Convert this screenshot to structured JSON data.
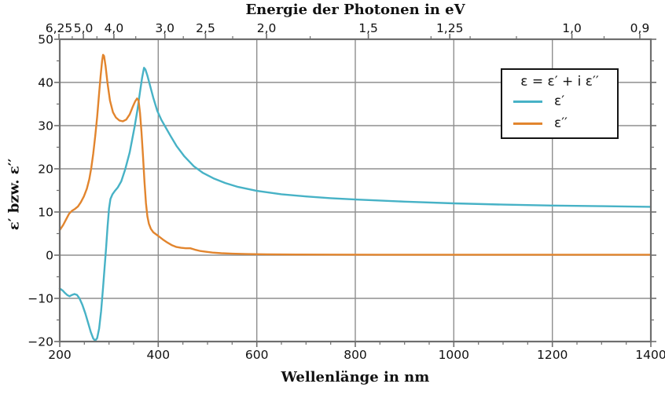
{
  "chart_data": {
    "type": "line",
    "title": "Energie der Photonen in eV",
    "xlabel": "Wellenlänge in nm",
    "ylabel": "ε′ bzw. ε′′",
    "grid": true,
    "x_axis": {
      "label": "Wellenlänge in nm",
      "unit": "nm",
      "min": 200,
      "max": 1400,
      "major_ticks": [
        {
          "v": 200,
          "label": "200"
        },
        {
          "v": 400,
          "label": "400"
        },
        {
          "v": 600,
          "label": "600"
        },
        {
          "v": 800,
          "label": "800"
        },
        {
          "v": 1000,
          "label": "1000"
        },
        {
          "v": 1200,
          "label": "1200"
        },
        {
          "v": 1400,
          "label": "1400"
        }
      ],
      "minor_tick_step": 50
    },
    "y_axis": {
      "label": "ε′ bzw. ε′′",
      "min": -20,
      "max": 50,
      "major_ticks": [
        {
          "v": -20,
          "label": "−20"
        },
        {
          "v": -10,
          "label": "−10"
        },
        {
          "v": 0,
          "label": "0"
        },
        {
          "v": 10,
          "label": "10"
        },
        {
          "v": 20,
          "label": "20"
        },
        {
          "v": 30,
          "label": "30"
        },
        {
          "v": 40,
          "label": "40"
        },
        {
          "v": 50,
          "label": "50"
        }
      ],
      "minor_tick_step": 5
    },
    "top_axis": {
      "label": "Energie der Photonen in eV",
      "unit": "eV",
      "nm_per_ev": 1239.84,
      "major_ticks": [
        {
          "v": 6.25,
          "label": "6,25"
        },
        {
          "v": 5.0,
          "label": "5,0"
        },
        {
          "v": 4.0,
          "label": "4,0"
        },
        {
          "v": 3.0,
          "label": "3,0"
        },
        {
          "v": 2.5,
          "label": "2,5"
        },
        {
          "v": 2.0,
          "label": "2,0"
        },
        {
          "v": 1.5,
          "label": "1,5"
        },
        {
          "v": 1.25,
          "label": "1,25"
        },
        {
          "v": 1.0,
          "label": "1,0"
        },
        {
          "v": 0.9,
          "label": "0,9"
        }
      ],
      "minor_ticks": [
        5.5,
        4.5,
        3.5,
        2.75,
        2.25,
        1.75,
        1.3,
        1.2,
        1.1,
        0.95
      ]
    },
    "legend": {
      "position": "upper right",
      "title": "ε = ε′  + i ε′′",
      "entries": [
        {
          "label": "ε′",
          "color": "#47b2c6"
        },
        {
          "label": "ε′′",
          "color": "#e2852e"
        }
      ]
    },
    "series": [
      {
        "name": "epsilon-real",
        "label": "ε′",
        "color": "#47b2c6",
        "points": [
          [
            200,
            -7.7
          ],
          [
            206,
            -8.2
          ],
          [
            211,
            -8.8
          ],
          [
            216,
            -9.3
          ],
          [
            220,
            -9.5
          ],
          [
            225,
            -9.2
          ],
          [
            230,
            -9.0
          ],
          [
            235,
            -9.2
          ],
          [
            240,
            -10.0
          ],
          [
            246,
            -11.5
          ],
          [
            252,
            -13.5
          ],
          [
            258,
            -15.8
          ],
          [
            263,
            -17.8
          ],
          [
            268,
            -19.3
          ],
          [
            272,
            -19.8
          ],
          [
            276,
            -19.2
          ],
          [
            280,
            -17.0
          ],
          [
            284,
            -13.0
          ],
          [
            288,
            -7.5
          ],
          [
            291,
            -3.0
          ],
          [
            294,
            1.5
          ],
          [
            297,
            6.5
          ],
          [
            300,
            10.8
          ],
          [
            303,
            13.0
          ],
          [
            307,
            14.1
          ],
          [
            312,
            14.9
          ],
          [
            318,
            15.7
          ],
          [
            325,
            17.1
          ],
          [
            333,
            19.9
          ],
          [
            342,
            23.8
          ],
          [
            352,
            29.8
          ],
          [
            358,
            33.8
          ],
          [
            363,
            37.8
          ],
          [
            367,
            41.0
          ],
          [
            371,
            43.4
          ],
          [
            374,
            43.0
          ],
          [
            378,
            41.6
          ],
          [
            383,
            39.4
          ],
          [
            390,
            36.4
          ],
          [
            398,
            33.4
          ],
          [
            406,
            31.4
          ],
          [
            414,
            29.8
          ],
          [
            425,
            27.6
          ],
          [
            437,
            25.3
          ],
          [
            453,
            22.9
          ],
          [
            472,
            20.6
          ],
          [
            490,
            19.1
          ],
          [
            512,
            17.8
          ],
          [
            536,
            16.7
          ],
          [
            562,
            15.8
          ],
          [
            600,
            14.9
          ],
          [
            650,
            14.1
          ],
          [
            700,
            13.6
          ],
          [
            750,
            13.2
          ],
          [
            800,
            12.9
          ],
          [
            900,
            12.4
          ],
          [
            1000,
            12.0
          ],
          [
            1100,
            11.7
          ],
          [
            1200,
            11.5
          ],
          [
            1300,
            11.35
          ],
          [
            1400,
            11.2
          ]
        ]
      },
      {
        "name": "epsilon-imag",
        "label": "ε′′",
        "color": "#e2852e",
        "points": [
          [
            200,
            5.8
          ],
          [
            207,
            7.0
          ],
          [
            213,
            8.3
          ],
          [
            219,
            9.6
          ],
          [
            225,
            10.3
          ],
          [
            231,
            10.7
          ],
          [
            237,
            11.3
          ],
          [
            243,
            12.3
          ],
          [
            249,
            13.6
          ],
          [
            255,
            15.4
          ],
          [
            260,
            17.6
          ],
          [
            264,
            20.2
          ],
          [
            268,
            23.5
          ],
          [
            272,
            27.5
          ],
          [
            276,
            32.0
          ],
          [
            280,
            37.5
          ],
          [
            283,
            41.5
          ],
          [
            286,
            45.0
          ],
          [
            288,
            46.4
          ],
          [
            290,
            46.1
          ],
          [
            293,
            43.8
          ],
          [
            297,
            39.8
          ],
          [
            302,
            35.8
          ],
          [
            308,
            33.1
          ],
          [
            314,
            31.9
          ],
          [
            321,
            31.2
          ],
          [
            328,
            31.0
          ],
          [
            335,
            31.4
          ],
          [
            342,
            32.6
          ],
          [
            348,
            34.3
          ],
          [
            353,
            35.6
          ],
          [
            357,
            36.3
          ],
          [
            360,
            35.8
          ],
          [
            363,
            33.0
          ],
          [
            366,
            28.5
          ],
          [
            369,
            23.0
          ],
          [
            372,
            17.0
          ],
          [
            375,
            12.0
          ],
          [
            378,
            9.0
          ],
          [
            381,
            7.3
          ],
          [
            385,
            6.1
          ],
          [
            390,
            5.3
          ],
          [
            396,
            4.8
          ],
          [
            403,
            4.2
          ],
          [
            411,
            3.5
          ],
          [
            419,
            2.9
          ],
          [
            428,
            2.3
          ],
          [
            437,
            1.9
          ],
          [
            446,
            1.7
          ],
          [
            456,
            1.6
          ],
          [
            465,
            1.6
          ],
          [
            474,
            1.3
          ],
          [
            484,
            1.0
          ],
          [
            496,
            0.8
          ],
          [
            510,
            0.6
          ],
          [
            528,
            0.45
          ],
          [
            550,
            0.35
          ],
          [
            580,
            0.25
          ],
          [
            620,
            0.2
          ],
          [
            680,
            0.15
          ],
          [
            750,
            0.12
          ],
          [
            850,
            0.1
          ],
          [
            1000,
            0.1
          ],
          [
            1200,
            0.1
          ],
          [
            1400,
            0.1
          ]
        ]
      }
    ],
    "styles": {
      "grid_color": "#8f8f8f",
      "spine_color": "#6e6e6e",
      "tick_color": "#6e6e6e",
      "text_color": "#111111",
      "background": "#ffffff"
    }
  }
}
